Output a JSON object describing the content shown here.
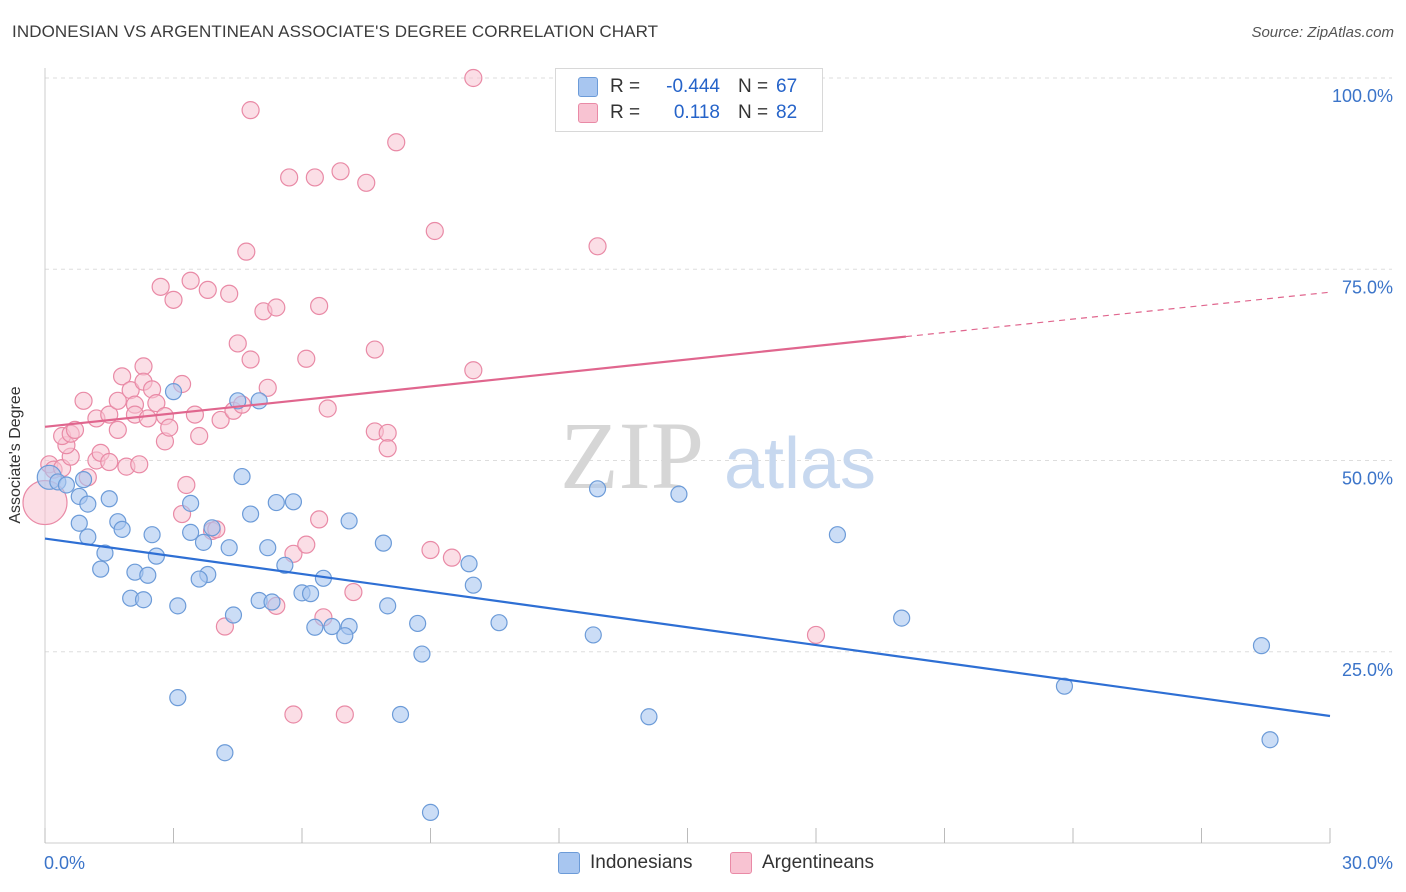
{
  "header": {
    "title": "INDONESIAN VS ARGENTINEAN ASSOCIATE'S DEGREE CORRELATION CHART",
    "source": "Source: ZipAtlas.com"
  },
  "watermark": {
    "zip": "ZIP",
    "atlas": "atlas"
  },
  "legend": {
    "rows": [
      {
        "r_label": "R =",
        "r_value": "-0.444",
        "n_label": "N =",
        "n_value": "67",
        "color": "#a8c6f0"
      },
      {
        "r_label": "R =",
        "r_value": "0.118",
        "n_label": "N =",
        "n_value": "82",
        "color": "#f5b8ca"
      }
    ]
  },
  "colors": {
    "blue_fill": "#a8c6f0",
    "blue_stroke": "#6c9bd8",
    "blue_line": "#2e6fd4",
    "pink_fill": "#f8c3d2",
    "pink_stroke": "#e98aa6",
    "pink_line": "#e0668e",
    "axis_text": "#3b74c9",
    "grid": "#dddddd"
  },
  "chart_data": {
    "type": "scatter",
    "title": "INDONESIAN VS ARGENTINEAN ASSOCIATE'S DEGREE CORRELATION CHART",
    "xlabel": "",
    "ylabel": "Associate's Degree",
    "xlim": [
      0,
      30
    ],
    "ylim": [
      0,
      100
    ],
    "x_tick_labels": [
      "0.0%",
      "30.0%"
    ],
    "y_tick_labels": [
      "100.0%",
      "75.0%",
      "50.0%",
      "25.0%"
    ],
    "y_ticks": [
      100,
      75,
      50,
      25
    ],
    "grid": true,
    "legend_position": "top-center",
    "series": [
      {
        "name": "Indonesians",
        "r": -0.444,
        "n": 67,
        "trend": {
          "x": [
            0,
            30
          ],
          "y": [
            39.8,
            16.6
          ],
          "dashed_from": null
        },
        "points": [
          [
            0.1,
            47.8
          ],
          [
            0.3,
            47.2
          ],
          [
            0.5,
            46.8
          ],
          [
            0.8,
            45.3
          ],
          [
            1.0,
            44.3
          ],
          [
            0.9,
            47.5
          ],
          [
            1.5,
            45.0
          ],
          [
            0.8,
            41.8
          ],
          [
            1.7,
            42.0
          ],
          [
            1.0,
            40.0
          ],
          [
            1.8,
            41.0
          ],
          [
            1.4,
            37.9
          ],
          [
            2.5,
            40.3
          ],
          [
            2.6,
            37.5
          ],
          [
            1.3,
            35.8
          ],
          [
            2.1,
            35.4
          ],
          [
            2.4,
            35.0
          ],
          [
            2.0,
            32.0
          ],
          [
            2.3,
            31.8
          ],
          [
            3.1,
            31.0
          ],
          [
            3.4,
            44.4
          ],
          [
            3.4,
            40.6
          ],
          [
            3.7,
            39.3
          ],
          [
            3.9,
            41.2
          ],
          [
            4.3,
            38.6
          ],
          [
            3.8,
            35.1
          ],
          [
            3.6,
            34.5
          ],
          [
            4.4,
            29.8
          ],
          [
            4.6,
            47.9
          ],
          [
            4.8,
            43.0
          ],
          [
            5.0,
            57.8
          ],
          [
            4.5,
            57.8
          ],
          [
            3.0,
            59.0
          ],
          [
            5.4,
            44.5
          ],
          [
            5.8,
            44.6
          ],
          [
            5.2,
            38.6
          ],
          [
            5.6,
            36.3
          ],
          [
            5.0,
            31.7
          ],
          [
            5.3,
            31.5
          ],
          [
            6.0,
            32.7
          ],
          [
            6.2,
            32.6
          ],
          [
            6.5,
            34.6
          ],
          [
            6.3,
            28.2
          ],
          [
            6.7,
            28.3
          ],
          [
            7.1,
            28.3
          ],
          [
            7.0,
            27.1
          ],
          [
            7.1,
            42.1
          ],
          [
            7.9,
            39.2
          ],
          [
            8.0,
            31.0
          ],
          [
            8.3,
            16.8
          ],
          [
            8.7,
            28.7
          ],
          [
            8.8,
            24.7
          ],
          [
            9.9,
            36.5
          ],
          [
            10.0,
            33.7
          ],
          [
            10.6,
            28.8
          ],
          [
            12.8,
            27.2
          ],
          [
            12.9,
            46.3
          ],
          [
            14.1,
            16.5
          ],
          [
            14.8,
            45.6
          ],
          [
            18.5,
            40.3
          ],
          [
            20.0,
            29.4
          ],
          [
            23.8,
            20.5
          ],
          [
            28.4,
            25.8
          ],
          [
            28.6,
            13.5
          ],
          [
            3.1,
            19.0
          ],
          [
            4.2,
            11.8
          ],
          [
            9.0,
            4.0
          ]
        ]
      },
      {
        "name": "Argentineans",
        "r": 0.118,
        "n": 82,
        "trend": {
          "x": [
            0,
            20.1
          ],
          "y": [
            54.4,
            66.2
          ],
          "dashed_to": [
            30,
            72.0
          ]
        },
        "points": [
          [
            0.0,
            44.5
          ],
          [
            0.1,
            49.5
          ],
          [
            0.2,
            48.8
          ],
          [
            0.4,
            49.0
          ],
          [
            0.6,
            50.5
          ],
          [
            0.5,
            52.0
          ],
          [
            0.4,
            53.2
          ],
          [
            0.6,
            53.5
          ],
          [
            0.7,
            54.0
          ],
          [
            0.9,
            57.8
          ],
          [
            1.0,
            47.8
          ],
          [
            1.2,
            50.0
          ],
          [
            1.3,
            51.0
          ],
          [
            1.2,
            55.5
          ],
          [
            1.5,
            49.8
          ],
          [
            1.5,
            56.0
          ],
          [
            1.7,
            54.0
          ],
          [
            1.7,
            57.8
          ],
          [
            1.8,
            61.0
          ],
          [
            1.9,
            49.2
          ],
          [
            2.0,
            59.2
          ],
          [
            2.1,
            57.3
          ],
          [
            2.1,
            56.0
          ],
          [
            2.2,
            49.5
          ],
          [
            2.3,
            62.3
          ],
          [
            2.3,
            60.3
          ],
          [
            2.4,
            55.5
          ],
          [
            2.5,
            59.3
          ],
          [
            2.6,
            57.5
          ],
          [
            2.7,
            72.7
          ],
          [
            2.8,
            55.8
          ],
          [
            2.8,
            52.5
          ],
          [
            2.9,
            54.3
          ],
          [
            3.0,
            71.0
          ],
          [
            3.2,
            60.0
          ],
          [
            3.2,
            43.0
          ],
          [
            3.3,
            46.8
          ],
          [
            3.4,
            73.5
          ],
          [
            3.5,
            56.0
          ],
          [
            3.6,
            53.2
          ],
          [
            3.8,
            72.3
          ],
          [
            3.9,
            40.8
          ],
          [
            4.0,
            41.0
          ],
          [
            4.1,
            55.3
          ],
          [
            4.2,
            28.3
          ],
          [
            4.3,
            71.8
          ],
          [
            4.4,
            56.5
          ],
          [
            4.5,
            65.3
          ],
          [
            4.6,
            57.3
          ],
          [
            4.7,
            77.3
          ],
          [
            4.8,
            63.2
          ],
          [
            4.8,
            95.8
          ],
          [
            5.1,
            69.5
          ],
          [
            5.2,
            59.5
          ],
          [
            5.4,
            70.0
          ],
          [
            5.4,
            31.0
          ],
          [
            5.7,
            87.0
          ],
          [
            5.8,
            16.8
          ],
          [
            5.8,
            37.8
          ],
          [
            6.1,
            39.0
          ],
          [
            6.1,
            63.3
          ],
          [
            6.3,
            87.0
          ],
          [
            6.4,
            70.2
          ],
          [
            6.4,
            42.3
          ],
          [
            6.5,
            29.5
          ],
          [
            6.6,
            56.8
          ],
          [
            6.9,
            87.8
          ],
          [
            7.0,
            16.8
          ],
          [
            7.2,
            32.8
          ],
          [
            7.5,
            86.3
          ],
          [
            7.7,
            64.5
          ],
          [
            7.7,
            53.8
          ],
          [
            8.0,
            53.6
          ],
          [
            8.0,
            51.6
          ],
          [
            8.2,
            91.6
          ],
          [
            9.0,
            38.3
          ],
          [
            9.1,
            80.0
          ],
          [
            9.5,
            37.3
          ],
          [
            10.0,
            61.8
          ],
          [
            10.0,
            100.0
          ],
          [
            12.9,
            78.0
          ],
          [
            18.0,
            27.2
          ]
        ]
      }
    ]
  },
  "bottom_legend": {
    "items": [
      {
        "label": "Indonesians",
        "color": "#a8c6f0"
      },
      {
        "label": "Argentineans",
        "color": "#f8c3d2"
      }
    ]
  }
}
